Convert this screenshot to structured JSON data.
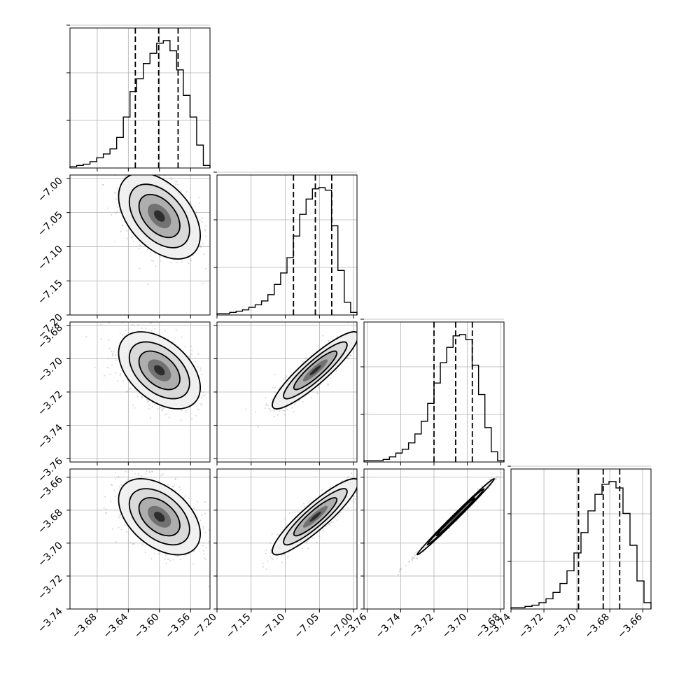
{
  "chart_data": {
    "type": "corner",
    "parameters": 4,
    "grid": true,
    "axes": [
      {
        "range": [
          -3.715,
          -3.535
        ],
        "ticks": [
          -3.68,
          -3.64,
          -3.6,
          -3.56
        ],
        "tick_labels": [
          "−3.68",
          "−3.64",
          "−3.60",
          "−3.56"
        ]
      },
      {
        "range": [
          -7.2,
          -6.995
        ],
        "ticks": [
          -7.2,
          -7.15,
          -7.1,
          -7.05,
          -7.0
        ],
        "tick_labels": [
          "−7.20",
          "−7.15",
          "−7.10",
          "−7.05",
          "−7.00"
        ]
      },
      {
        "range": [
          -3.762,
          -3.678
        ],
        "ticks": [
          -3.76,
          -3.74,
          -3.72,
          -3.7,
          -3.68
        ],
        "tick_labels": [
          "−3.76",
          "−3.74",
          "−3.72",
          "−3.70",
          "−3.68"
        ]
      },
      {
        "range": [
          -3.74,
          -3.655
        ],
        "ticks": [
          -3.74,
          -3.72,
          -3.7,
          -3.68,
          -3.66
        ],
        "tick_labels": [
          "−3.74",
          "−3.72",
          "−3.70",
          "−3.68",
          "−3.66"
        ]
      }
    ],
    "histograms": [
      {
        "quantiles": [
          -3.631,
          -3.601,
          -3.576
        ],
        "bins": [
          -3.715,
          -3.535
        ],
        "counts": [
          0.01,
          0.02,
          0.03,
          0.05,
          0.08,
          0.11,
          0.15,
          0.24,
          0.4,
          0.6,
          0.7,
          0.82,
          0.9,
          0.98,
          1.0,
          0.92,
          0.77,
          0.57,
          0.4,
          0.18,
          0.02
        ]
      },
      {
        "quantiles": [
          -7.088,
          -7.056,
          -7.032
        ],
        "bins": [
          -7.2,
          -6.995
        ],
        "counts": [
          0.01,
          0.01,
          0.02,
          0.03,
          0.04,
          0.06,
          0.08,
          0.11,
          0.16,
          0.24,
          0.33,
          0.45,
          0.62,
          0.79,
          0.91,
          0.99,
          1.0,
          0.98,
          0.7,
          0.35,
          0.1,
          0.02
        ]
      },
      {
        "quantiles": [
          -3.72,
          -3.707,
          -3.697
        ],
        "bins": [
          -3.762,
          -3.678
        ],
        "counts": [
          0.01,
          0.01,
          0.01,
          0.02,
          0.04,
          0.07,
          0.1,
          0.15,
          0.22,
          0.32,
          0.46,
          0.62,
          0.78,
          0.9,
          0.99,
          1.0,
          0.96,
          0.76,
          0.53,
          0.27,
          0.08,
          0.01
        ]
      },
      {
        "quantiles": [
          -3.699,
          -3.684,
          -3.674
        ],
        "bins": [
          -3.74,
          -3.655
        ],
        "counts": [
          0.01,
          0.01,
          0.02,
          0.03,
          0.05,
          0.08,
          0.13,
          0.2,
          0.3,
          0.44,
          0.6,
          0.77,
          0.9,
          0.98,
          1.0,
          0.95,
          0.75,
          0.5,
          0.22,
          0.05
        ]
      }
    ],
    "pairs": [
      {
        "row": 1,
        "col": 0,
        "center": [
          -3.6,
          -7.055
        ],
        "sd": [
          0.025,
          0.03
        ],
        "corr": -0.45
      },
      {
        "row": 2,
        "col": 0,
        "center": [
          -3.6,
          -3.707
        ],
        "sd": [
          0.025,
          0.011
        ],
        "corr": -0.45
      },
      {
        "row": 2,
        "col": 1,
        "center": [
          -7.056,
          -3.707
        ],
        "sd": [
          0.03,
          0.011
        ],
        "corr": 0.9
      },
      {
        "row": 3,
        "col": 0,
        "center": [
          -3.6,
          -3.684
        ],
        "sd": [
          0.025,
          0.011
        ],
        "corr": -0.45
      },
      {
        "row": 3,
        "col": 1,
        "center": [
          -7.056,
          -3.684
        ],
        "sd": [
          0.03,
          0.011
        ],
        "corr": 0.9
      },
      {
        "row": 3,
        "col": 2,
        "center": [
          -3.707,
          -3.684
        ],
        "sd": [
          0.011,
          0.011
        ],
        "corr": 0.995
      }
    ]
  }
}
